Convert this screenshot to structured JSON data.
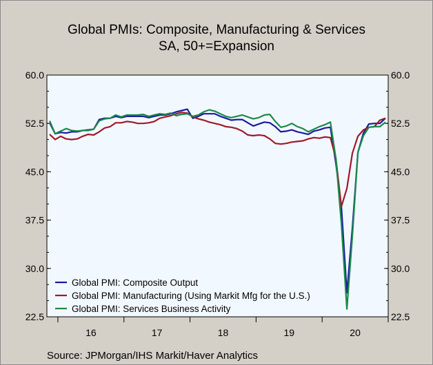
{
  "chart_data": {
    "type": "line",
    "title": "Global PMIs: Composite, Manufacturing & Services",
    "subtitle": "SA, 50+=Expansion",
    "source": "Source:   JPMorgan/IHS Markit/Haver Analytics",
    "ylim": [
      22.5,
      60.0
    ],
    "yticks": [
      "60.0",
      "52.5",
      "45.0",
      "37.5",
      "30.0",
      "22.5"
    ],
    "ytick_values": [
      60.0,
      52.5,
      45.0,
      37.5,
      30.0,
      22.5
    ],
    "xlabels": [
      "16",
      "17",
      "18",
      "19",
      "20"
    ],
    "x_start": "2015-11",
    "grid": false,
    "legend_position": "bottom-left",
    "colors": {
      "plot_bg": "#f2f8ff",
      "frame_bg": "#d4d0c8"
    },
    "series": [
      {
        "name": "Global PMI: Composite Output",
        "color": "#1a1aa0",
        "values": [
          52.6,
          50.9,
          51.1,
          51.0,
          51.2,
          51.2,
          51.4,
          51.5,
          51.6,
          53.1,
          53.3,
          53.3,
          53.6,
          53.4,
          53.6,
          53.6,
          53.6,
          53.6,
          53.4,
          53.6,
          53.8,
          53.8,
          54.0,
          54.3,
          54.5,
          54.7,
          53.3,
          53.6,
          54.0,
          54.0,
          54.0,
          53.6,
          53.3,
          53.0,
          53.1,
          53.1,
          52.6,
          52.1,
          52.4,
          52.7,
          52.6,
          52.0,
          51.2,
          51.3,
          51.5,
          51.2,
          51.0,
          50.8,
          51.3,
          51.5,
          51.8,
          51.9,
          46.3,
          39.6,
          26.2,
          36.3,
          48.0,
          51.0,
          52.4,
          52.5,
          52.5,
          53.3
        ]
      },
      {
        "name": "Global PMI: Manufacturing (Using Markit Mfg for the U.S.)",
        "color": "#a0182a",
        "values": [
          50.8,
          50.0,
          50.5,
          50.1,
          50.0,
          50.1,
          50.5,
          50.8,
          50.7,
          51.2,
          51.8,
          52.0,
          52.6,
          52.6,
          52.8,
          52.7,
          52.5,
          52.5,
          52.6,
          52.8,
          53.3,
          53.5,
          53.7,
          54.0,
          54.2,
          54.1,
          53.5,
          53.2,
          53.0,
          52.7,
          52.5,
          52.3,
          52.0,
          51.9,
          51.7,
          51.3,
          50.7,
          50.6,
          50.7,
          50.6,
          50.1,
          49.4,
          49.3,
          49.4,
          49.6,
          49.7,
          49.8,
          50.1,
          50.3,
          50.2,
          50.4,
          50.3,
          47.1,
          39.6,
          42.4,
          47.9,
          50.5,
          51.5,
          51.9,
          52.0,
          53.0,
          53.3
        ]
      },
      {
        "name": "Global PMI: Services Business Activity",
        "color": "#1a8a4a",
        "values": [
          52.9,
          50.9,
          51.3,
          51.7,
          51.4,
          51.3,
          51.4,
          51.4,
          51.6,
          52.9,
          53.2,
          53.3,
          53.8,
          53.5,
          53.8,
          53.8,
          53.8,
          53.9,
          53.6,
          53.8,
          54.0,
          53.9,
          54.1,
          53.7,
          53.9,
          54.0,
          53.6,
          53.8,
          54.3,
          54.6,
          54.4,
          54.0,
          53.6,
          53.4,
          53.6,
          53.8,
          53.5,
          53.2,
          53.4,
          53.8,
          53.9,
          52.8,
          51.9,
          52.1,
          52.5,
          52.0,
          51.7,
          51.2,
          51.6,
          52.0,
          52.3,
          52.7,
          47.1,
          37.0,
          23.7,
          35.1,
          48.0,
          50.6,
          51.9,
          52.0,
          52.0,
          52.7
        ]
      }
    ]
  }
}
